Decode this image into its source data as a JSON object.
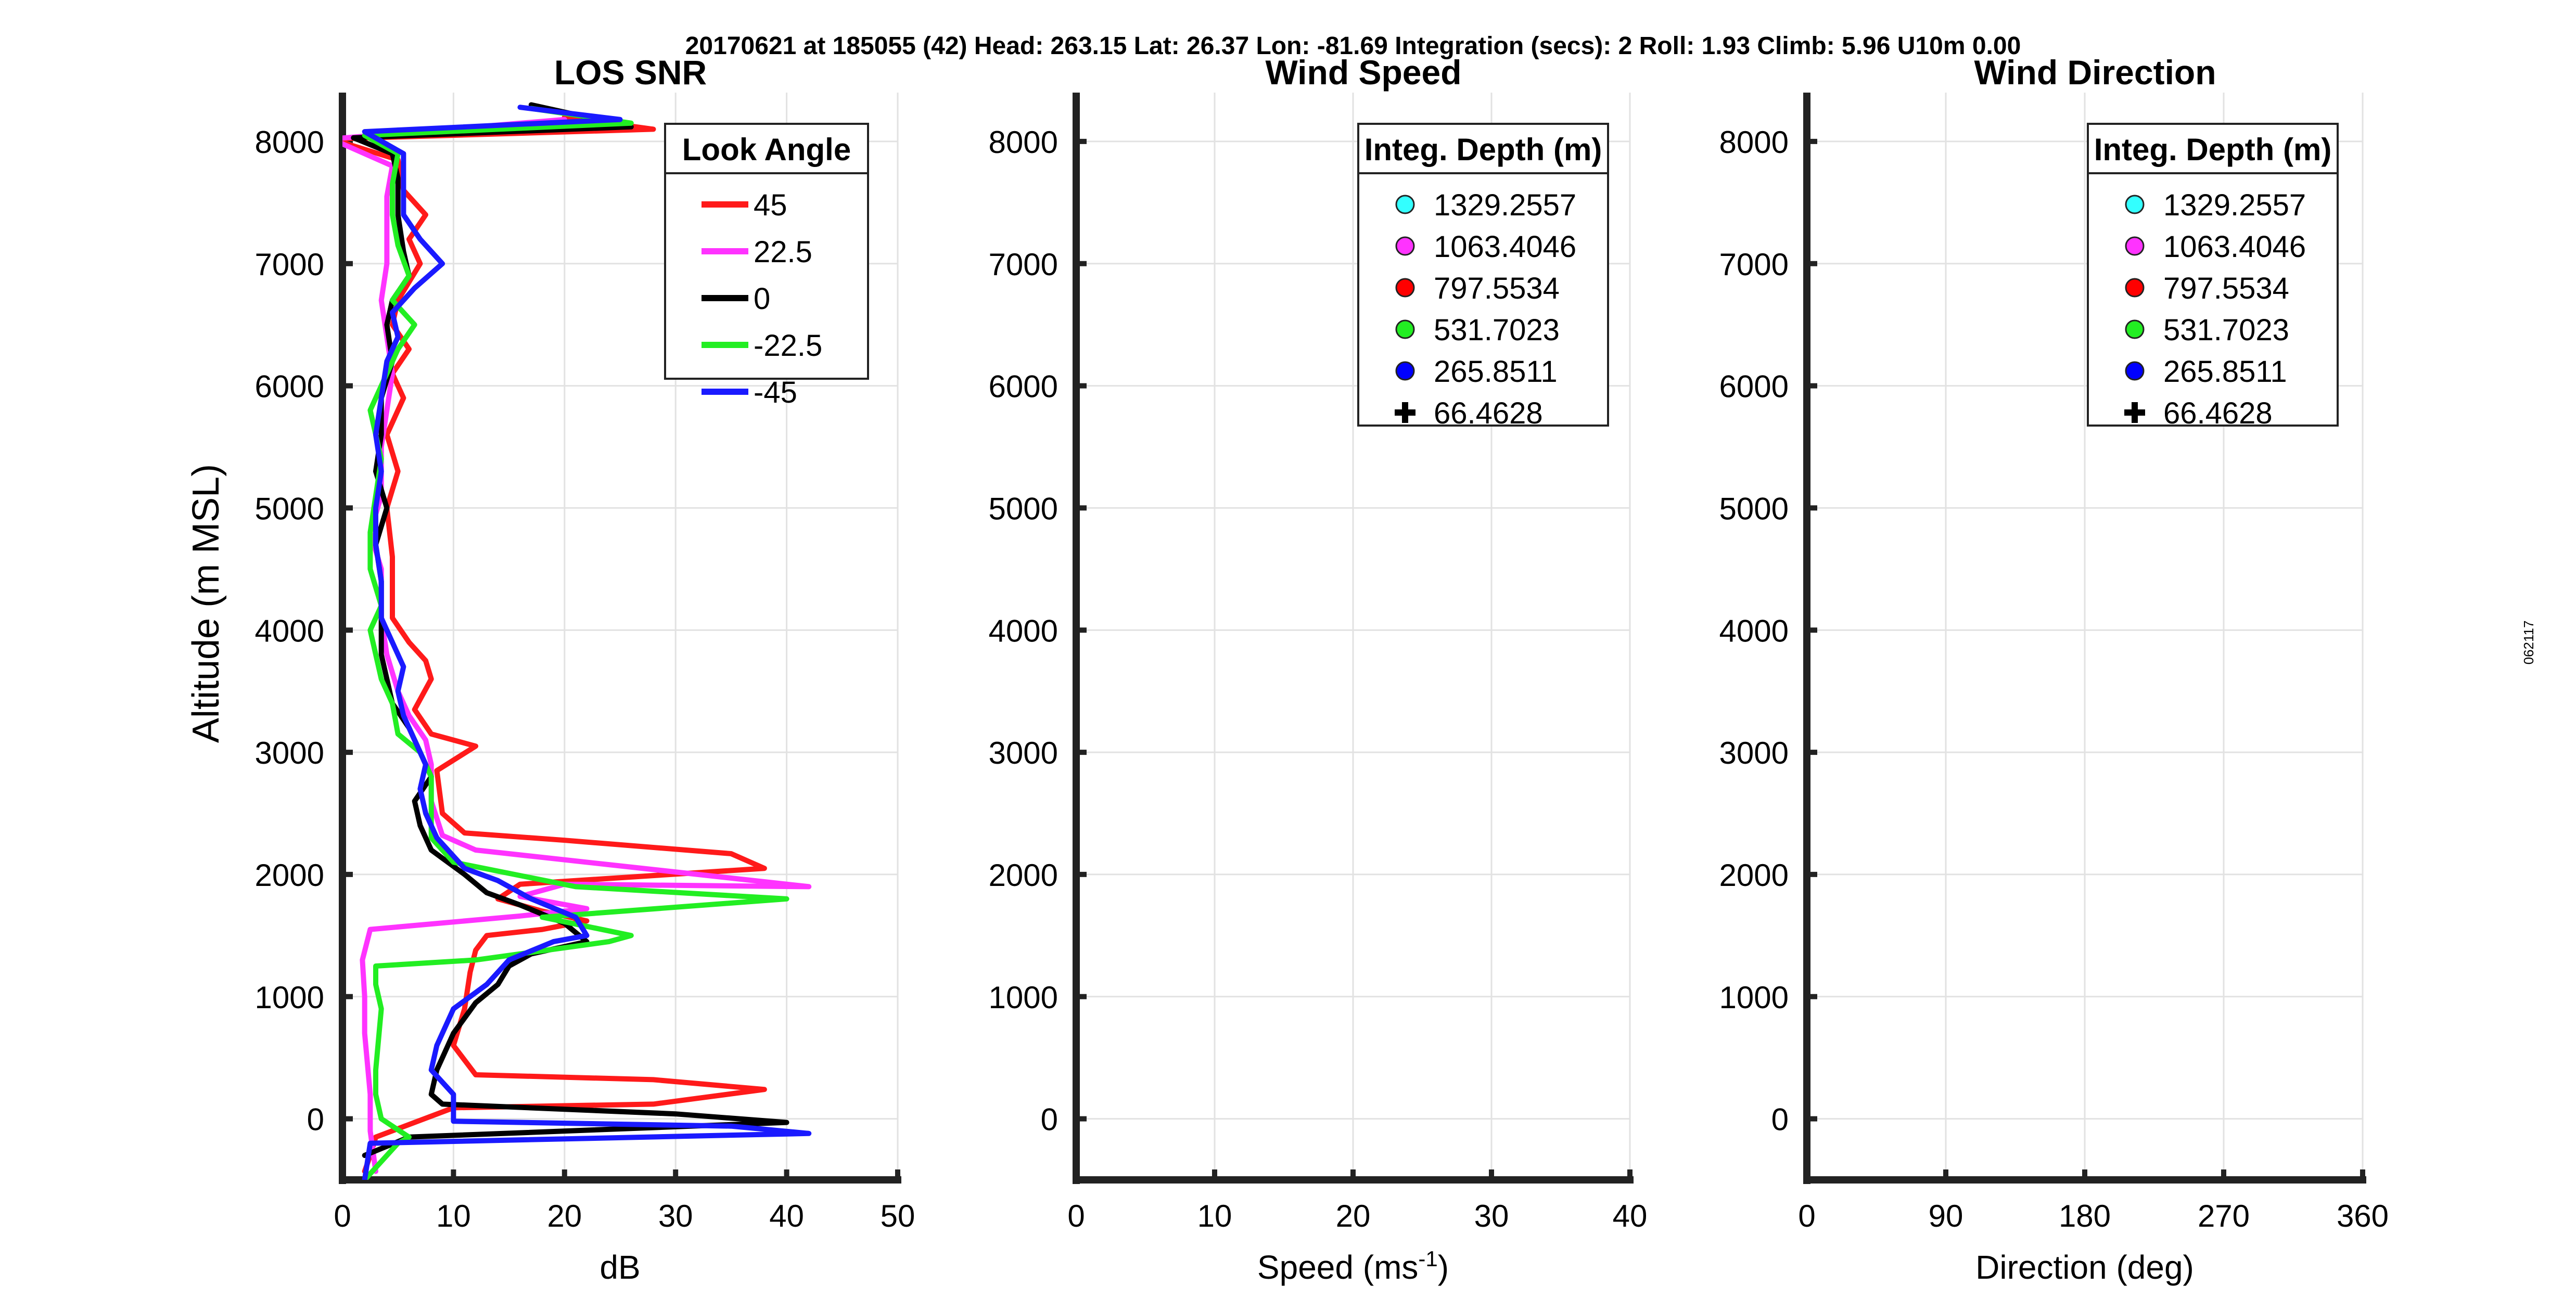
{
  "header": "20170621 at 185055 (42)  Head: 263.15  Lat: 26.37  Lon: -81.69  Integration (secs): 2  Roll: 1.93  Climb: 5.96  U10m 0.00",
  "side_label": "062117",
  "colors": {
    "c45": "#ff1a1a",
    "c22": "#ff33ff",
    "c0": "#000000",
    "cm22": "#22ee22",
    "cm45": "#1a1aff",
    "cyan": "#33ffff",
    "magenta": "#ff33ff",
    "red": "#ff0000",
    "green": "#22ee22",
    "blue": "#0000ff",
    "black": "#000000"
  },
  "chart_data": [
    {
      "type": "line",
      "title": "LOS SNR",
      "xlabel": "dB",
      "ylabel": "Altitude (m MSL)",
      "xlim": [
        0,
        50
      ],
      "ylim": [
        -500,
        8400
      ],
      "xticks": [
        "0",
        "10",
        "20",
        "30",
        "40",
        "50"
      ],
      "yticks": [
        "0",
        "1000",
        "2000",
        "3000",
        "4000",
        "5000",
        "6000",
        "7000",
        "8000"
      ],
      "grid": true,
      "legend": {
        "title": "Look Angle",
        "position": "top-right"
      },
      "series": [
        {
          "name": "45",
          "color_key": "c45",
          "points": [
            [
              2,
              -430
            ],
            [
              2.5,
              -300
            ],
            [
              3,
              -150
            ],
            [
              10,
              90
            ],
            [
              28,
              120
            ],
            [
              38,
              240
            ],
            [
              28,
              320
            ],
            [
              12,
              360
            ],
            [
              10,
              600
            ],
            [
              11,
              900
            ],
            [
              11.5,
              1200
            ],
            [
              12,
              1380
            ],
            [
              13,
              1500
            ],
            [
              18,
              1550
            ],
            [
              22,
              1620
            ],
            [
              18,
              1700
            ],
            [
              14,
              1800
            ],
            [
              16,
              1920
            ],
            [
              38,
              2050
            ],
            [
              35,
              2170
            ],
            [
              20,
              2280
            ],
            [
              11,
              2340
            ],
            [
              9,
              2500
            ],
            [
              8.5,
              2850
            ],
            [
              12,
              3050
            ],
            [
              8,
              3150
            ],
            [
              6.5,
              3350
            ],
            [
              8,
              3600
            ],
            [
              7.5,
              3750
            ],
            [
              6,
              3900
            ],
            [
              4.5,
              4100
            ],
            [
              4.5,
              4600
            ],
            [
              4,
              5000
            ],
            [
              5,
              5300
            ],
            [
              4,
              5600
            ],
            [
              5.5,
              5900
            ],
            [
              4.5,
              6100
            ],
            [
              6,
              6300
            ],
            [
              4.5,
              6500
            ],
            [
              5,
              6700
            ],
            [
              7,
              7000
            ],
            [
              6,
              7200
            ],
            [
              7.5,
              7400
            ],
            [
              5.5,
              7600
            ],
            [
              5,
              7850
            ],
            [
              -1,
              8020
            ],
            [
              28,
              8100
            ],
            [
              20,
              8200
            ]
          ]
        },
        {
          "name": "22.5",
          "color_key": "c22",
          "points": [
            [
              3,
              -430
            ],
            [
              2.5,
              -100
            ],
            [
              2.5,
              200
            ],
            [
              2,
              700
            ],
            [
              2,
              1000
            ],
            [
              1.8,
              1300
            ],
            [
              2.5,
              1550
            ],
            [
              16,
              1660
            ],
            [
              22,
              1720
            ],
            [
              16,
              1820
            ],
            [
              20,
              1920
            ],
            [
              42,
              1900
            ],
            [
              24,
              2080
            ],
            [
              12,
              2200
            ],
            [
              9,
              2320
            ],
            [
              8,
              2600
            ],
            [
              8,
              2900
            ],
            [
              7.5,
              3100
            ],
            [
              6,
              3300
            ],
            [
              5,
              3500
            ],
            [
              4,
              3800
            ],
            [
              3.5,
              4100
            ],
            [
              3.5,
              4500
            ],
            [
              2.5,
              4800
            ],
            [
              3.5,
              5100
            ],
            [
              3.5,
              5500
            ],
            [
              4,
              5800
            ],
            [
              4.5,
              6100
            ],
            [
              4,
              6400
            ],
            [
              3.5,
              6700
            ],
            [
              4,
              7000
            ],
            [
              4,
              7300
            ],
            [
              4,
              7550
            ],
            [
              4.5,
              7800
            ],
            [
              -1,
              8020
            ],
            [
              20,
              8180
            ]
          ]
        },
        {
          "name": "0",
          "color_key": "c0",
          "points": [
            [
              2,
              -300
            ],
            [
              6,
              -150
            ],
            [
              40,
              -30
            ],
            [
              30,
              40
            ],
            [
              9,
              120
            ],
            [
              8,
              200
            ],
            [
              8.5,
              400
            ],
            [
              9,
              500
            ],
            [
              10,
              700
            ],
            [
              12,
              950
            ],
            [
              14,
              1100
            ],
            [
              15,
              1250
            ],
            [
              17,
              1350
            ],
            [
              22,
              1450
            ],
            [
              20,
              1600
            ],
            [
              16,
              1750
            ],
            [
              13,
              1850
            ],
            [
              11,
              2000
            ],
            [
              8,
              2200
            ],
            [
              7,
              2400
            ],
            [
              6.5,
              2600
            ],
            [
              8,
              2800
            ],
            [
              7,
              3000
            ],
            [
              6,
              3200
            ],
            [
              4.5,
              3400
            ],
            [
              4,
              3600
            ],
            [
              3.5,
              3800
            ],
            [
              3.5,
              4100
            ],
            [
              3.5,
              4400
            ],
            [
              3,
              4700
            ],
            [
              4,
              5000
            ],
            [
              3,
              5300
            ],
            [
              3.5,
              5600
            ],
            [
              3.5,
              5900
            ],
            [
              4.5,
              6200
            ],
            [
              4,
              6500
            ],
            [
              4.5,
              6700
            ],
            [
              6,
              6900
            ],
            [
              5.5,
              7100
            ],
            [
              5,
              7400
            ],
            [
              5,
              7700
            ],
            [
              4.5,
              7900
            ],
            [
              1,
              8030
            ],
            [
              26,
              8120
            ],
            [
              17,
              8300
            ]
          ]
        },
        {
          "name": "-22.5",
          "color_key": "cm22",
          "points": [
            [
              2,
              -500
            ],
            [
              5,
              -200
            ],
            [
              6,
              -150
            ],
            [
              3.5,
              0
            ],
            [
              3,
              200
            ],
            [
              3,
              400
            ],
            [
              3.5,
              900
            ],
            [
              3,
              1100
            ],
            [
              3,
              1250
            ],
            [
              12,
              1300
            ],
            [
              24,
              1450
            ],
            [
              26,
              1500
            ],
            [
              18,
              1650
            ],
            [
              40,
              1800
            ],
            [
              21,
              1900
            ],
            [
              10,
              2100
            ],
            [
              8,
              2300
            ],
            [
              8,
              2500
            ],
            [
              8,
              2800
            ],
            [
              7,
              3000
            ],
            [
              5,
              3150
            ],
            [
              4.5,
              3400
            ],
            [
              3.5,
              3600
            ],
            [
              2.5,
              4000
            ],
            [
              3.5,
              4200
            ],
            [
              2.5,
              4500
            ],
            [
              2.5,
              4800
            ],
            [
              3,
              5100
            ],
            [
              3.5,
              5400
            ],
            [
              2.5,
              5800
            ],
            [
              4,
              6100
            ],
            [
              5,
              6300
            ],
            [
              6.5,
              6500
            ],
            [
              4.5,
              6700
            ],
            [
              6,
              6900
            ],
            [
              5,
              7150
            ],
            [
              4.5,
              7400
            ],
            [
              4.5,
              7650
            ],
            [
              5,
              7900
            ],
            [
              2,
              8050
            ],
            [
              26,
              8150
            ],
            [
              17,
              8270
            ]
          ]
        },
        {
          "name": "-45",
          "color_key": "cm45",
          "points": [
            [
              2,
              -500
            ],
            [
              2.5,
              -200
            ],
            [
              42,
              -120
            ],
            [
              35,
              -60
            ],
            [
              10,
              -20
            ],
            [
              10,
              200
            ],
            [
              8,
              400
            ],
            [
              8.5,
              600
            ],
            [
              10,
              900
            ],
            [
              13,
              1100
            ],
            [
              15,
              1300
            ],
            [
              19,
              1450
            ],
            [
              22,
              1500
            ],
            [
              21,
              1650
            ],
            [
              17,
              1800
            ],
            [
              14,
              1950
            ],
            [
              11,
              2050
            ],
            [
              8.5,
              2300
            ],
            [
              7.5,
              2500
            ],
            [
              7,
              2700
            ],
            [
              7.5,
              2900
            ],
            [
              6.5,
              3100
            ],
            [
              5.5,
              3300
            ],
            [
              5,
              3500
            ],
            [
              5.5,
              3700
            ],
            [
              4.5,
              3900
            ],
            [
              3.5,
              4100
            ],
            [
              3.5,
              4400
            ],
            [
              3,
              4700
            ],
            [
              3,
              5000
            ],
            [
              3.5,
              5300
            ],
            [
              3,
              5600
            ],
            [
              3.5,
              5900
            ],
            [
              4,
              6200
            ],
            [
              5,
              6400
            ],
            [
              4.5,
              6600
            ],
            [
              6.5,
              6800
            ],
            [
              9,
              7000
            ],
            [
              7,
              7200
            ],
            [
              5.5,
              7400
            ],
            [
              5.5,
              7650
            ],
            [
              5.5,
              7900
            ],
            [
              2,
              8080
            ],
            [
              25,
              8180
            ],
            [
              16,
              8280
            ]
          ]
        }
      ]
    },
    {
      "type": "scatter",
      "title": "Wind Speed",
      "xlabel": "Speed (ms",
      "xlabel_sup": "-1",
      "xlabel_end": ")",
      "ylabel": "",
      "xlim": [
        0,
        40
      ],
      "ylim": [
        -500,
        8400
      ],
      "xticks": [
        "0",
        "10",
        "20",
        "30",
        "40"
      ],
      "yticks": [
        "0",
        "1000",
        "2000",
        "3000",
        "4000",
        "5000",
        "6000",
        "7000",
        "8000"
      ],
      "grid": true,
      "legend": {
        "title": "Integ. Depth (m)",
        "position": "top-right"
      },
      "series": [
        {
          "name": "1329.2557",
          "color_key": "cyan",
          "marker": "circle",
          "values": []
        },
        {
          "name": "1063.4046",
          "color_key": "magenta",
          "marker": "circle",
          "values": []
        },
        {
          "name": "797.5534",
          "color_key": "red",
          "marker": "circle",
          "values": []
        },
        {
          "name": "531.7023",
          "color_key": "green",
          "marker": "circle",
          "values": []
        },
        {
          "name": "265.8511",
          "color_key": "blue",
          "marker": "circle",
          "values": []
        },
        {
          "name": "66.4628",
          "color_key": "black",
          "marker": "plus",
          "values": []
        }
      ]
    },
    {
      "type": "scatter",
      "title": "Wind Direction",
      "xlabel": "Direction (deg)",
      "ylabel": "",
      "xlim": [
        0,
        360
      ],
      "ylim": [
        -500,
        8400
      ],
      "xticks": [
        "0",
        "90",
        "180",
        "270",
        "360"
      ],
      "yticks": [
        "0",
        "1000",
        "2000",
        "3000",
        "4000",
        "5000",
        "6000",
        "7000",
        "8000"
      ],
      "grid": true,
      "legend": {
        "title": "Integ. Depth (m)",
        "position": "top-right"
      },
      "series": [
        {
          "name": "1329.2557",
          "color_key": "cyan",
          "marker": "circle",
          "values": []
        },
        {
          "name": "1063.4046",
          "color_key": "magenta",
          "marker": "circle",
          "values": []
        },
        {
          "name": "797.5534",
          "color_key": "red",
          "marker": "circle",
          "values": []
        },
        {
          "name": "531.7023",
          "color_key": "green",
          "marker": "circle",
          "values": []
        },
        {
          "name": "265.8511",
          "color_key": "blue",
          "marker": "circle",
          "values": []
        },
        {
          "name": "66.4628",
          "color_key": "black",
          "marker": "plus",
          "values": []
        }
      ]
    }
  ]
}
